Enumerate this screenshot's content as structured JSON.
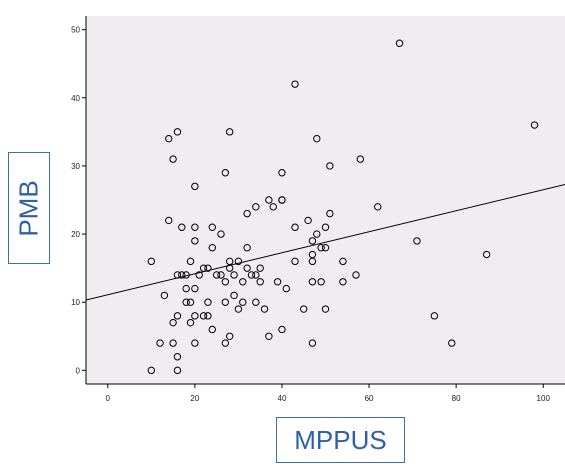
{
  "chart_data": {
    "type": "scatter",
    "xlabel": "MPPUS",
    "ylabel": "PMB",
    "xlim": [
      -5,
      105
    ],
    "ylim": [
      -2,
      52
    ],
    "xticks": [
      0,
      20,
      40,
      60,
      80,
      100
    ],
    "yticks": [
      0,
      10,
      20,
      30,
      40,
      50
    ],
    "grid": false,
    "regression_line": {
      "intercept": 11.1,
      "slope": 0.154
    },
    "points": [
      [
        10,
        0
      ],
      [
        10,
        16
      ],
      [
        12,
        4
      ],
      [
        13,
        11
      ],
      [
        14,
        22
      ],
      [
        14,
        34
      ],
      [
        15,
        31
      ],
      [
        15,
        4
      ],
      [
        15,
        7
      ],
      [
        16,
        35
      ],
      [
        16,
        14
      ],
      [
        16,
        8
      ],
      [
        16,
        2
      ],
      [
        16,
        0
      ],
      [
        17,
        21
      ],
      [
        17,
        14
      ],
      [
        18,
        12
      ],
      [
        18,
        10
      ],
      [
        18,
        14
      ],
      [
        19,
        10
      ],
      [
        19,
        7
      ],
      [
        19,
        16
      ],
      [
        20,
        27
      ],
      [
        20,
        21
      ],
      [
        20,
        19
      ],
      [
        20,
        12
      ],
      [
        20,
        8
      ],
      [
        20,
        4
      ],
      [
        21,
        14
      ],
      [
        22,
        8
      ],
      [
        22,
        15
      ],
      [
        23,
        8
      ],
      [
        23,
        10
      ],
      [
        23,
        15
      ],
      [
        24,
        21
      ],
      [
        24,
        18
      ],
      [
        24,
        6
      ],
      [
        25,
        14
      ],
      [
        26,
        20
      ],
      [
        26,
        14
      ],
      [
        27,
        29
      ],
      [
        27,
        13
      ],
      [
        27,
        10
      ],
      [
        27,
        4
      ],
      [
        28,
        35
      ],
      [
        28,
        15
      ],
      [
        28,
        16
      ],
      [
        28,
        5
      ],
      [
        29,
        11
      ],
      [
        29,
        14
      ],
      [
        30,
        16
      ],
      [
        30,
        9
      ],
      [
        31,
        13
      ],
      [
        31,
        10
      ],
      [
        32,
        23
      ],
      [
        32,
        18
      ],
      [
        32,
        15
      ],
      [
        33,
        14
      ],
      [
        34,
        24
      ],
      [
        34,
        14
      ],
      [
        34,
        10
      ],
      [
        35,
        15
      ],
      [
        35,
        13
      ],
      [
        36,
        9
      ],
      [
        37,
        5
      ],
      [
        37,
        25
      ],
      [
        38,
        24
      ],
      [
        39,
        13
      ],
      [
        40,
        29
      ],
      [
        40,
        25
      ],
      [
        40,
        25
      ],
      [
        40,
        6
      ],
      [
        41,
        12
      ],
      [
        43,
        42
      ],
      [
        43,
        21
      ],
      [
        43,
        16
      ],
      [
        45,
        9
      ],
      [
        46,
        22
      ],
      [
        47,
        19
      ],
      [
        47,
        17
      ],
      [
        47,
        16
      ],
      [
        47,
        13
      ],
      [
        47,
        4
      ],
      [
        48,
        34
      ],
      [
        48,
        20
      ],
      [
        49,
        18
      ],
      [
        49,
        13
      ],
      [
        50,
        21
      ],
      [
        50,
        18
      ],
      [
        50,
        9
      ],
      [
        51,
        30
      ],
      [
        51,
        23
      ],
      [
        54,
        16
      ],
      [
        54,
        13
      ],
      [
        57,
        14
      ],
      [
        58,
        31
      ],
      [
        62,
        24
      ],
      [
        67,
        48
      ],
      [
        71,
        19
      ],
      [
        75,
        8
      ],
      [
        79,
        4
      ],
      [
        87,
        17
      ],
      [
        98,
        36
      ]
    ]
  }
}
